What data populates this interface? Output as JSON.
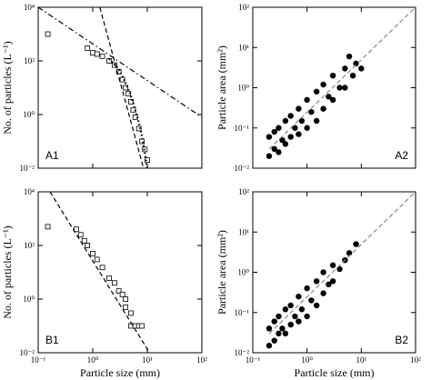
{
  "chart_data": [
    {
      "type": "scatter",
      "xscale": "log",
      "yscale": "log",
      "ylabel": "No. of particles (L⁻¹)",
      "annotation": "A1",
      "annotation_corner": "lower-left",
      "xlim": [
        0.1,
        100
      ],
      "ylim": [
        0.01,
        10000
      ],
      "xtick_labels": false,
      "xticks": [
        0.1,
        1,
        10,
        100
      ],
      "yticks": [
        {
          "value": 0.01,
          "label": "10⁻²"
        },
        {
          "value": 1,
          "label": "10⁰"
        },
        {
          "value": 100,
          "label": "10²"
        },
        {
          "value": 10000,
          "label": "10⁴"
        }
      ],
      "series": [
        {
          "kind": "scatter",
          "marker": "square",
          "color": "#000000",
          "x": [
            0.15,
            0.8,
            1,
            1.2,
            1.5,
            2,
            2.5,
            3,
            3.5,
            4,
            4.5,
            5,
            5.5,
            6,
            7,
            8,
            9,
            10
          ],
          "values": [
            1000,
            300,
            200,
            180,
            150,
            100,
            70,
            40,
            20,
            10,
            6,
            3,
            1.5,
            0.8,
            0.3,
            0.1,
            0.05,
            0.02
          ]
        },
        {
          "kind": "line",
          "dash": "dashdot",
          "color": "#000000",
          "x": [
            0.1,
            100
          ],
          "values": [
            10000,
            0.8
          ]
        },
        {
          "kind": "line",
          "dash": "dashed",
          "color": "#000000",
          "x": [
            1.35,
            8.5
          ],
          "values": [
            10000,
            0.01
          ]
        },
        {
          "kind": "line",
          "dash": "dotted",
          "color": "#000000",
          "x": [
            2,
            3,
            4,
            5,
            6,
            7,
            8,
            10
          ],
          "values": [
            120,
            50,
            15,
            5,
            1.5,
            0.5,
            0.15,
            0.01
          ]
        }
      ]
    },
    {
      "type": "scatter",
      "xscale": "log",
      "yscale": "log",
      "ylabel": "Particle area (mm²)",
      "annotation": "A2",
      "annotation_corner": "lower-right",
      "xlim": [
        0.1,
        100
      ],
      "ylim": [
        0.01,
        100
      ],
      "xtick_labels": false,
      "xticks": [
        0.1,
        1,
        10,
        100
      ],
      "yticks": [
        {
          "value": 0.01,
          "label": "10⁻²"
        },
        {
          "value": 0.1,
          "label": "10⁻¹"
        },
        {
          "value": 1,
          "label": "10⁰"
        },
        {
          "value": 10,
          "label": "10¹"
        },
        {
          "value": 100,
          "label": "10²"
        }
      ],
      "series": [
        {
          "kind": "scatter",
          "marker": "dot",
          "color": "#000000",
          "x": [
            0.2,
            0.2,
            0.25,
            0.25,
            0.3,
            0.3,
            0.35,
            0.4,
            0.4,
            0.5,
            0.5,
            0.6,
            0.7,
            0.7,
            0.8,
            1,
            1,
            1.2,
            1.5,
            1.5,
            2,
            2,
            2.5,
            3,
            3,
            4,
            5,
            5,
            6,
            7,
            8,
            10
          ],
          "values": [
            0.02,
            0.06,
            0.03,
            0.08,
            0.025,
            0.1,
            0.05,
            0.04,
            0.15,
            0.06,
            0.2,
            0.1,
            0.07,
            0.3,
            0.15,
            0.1,
            0.5,
            0.25,
            0.15,
            0.8,
            0.3,
            1.2,
            0.6,
            0.5,
            2,
            1,
            1,
            3,
            6,
            2,
            4,
            3
          ]
        },
        {
          "kind": "line",
          "dash": "dashed",
          "color": "#888888",
          "x": [
            0.2,
            100
          ],
          "values": [
            0.03,
            100
          ]
        }
      ]
    },
    {
      "type": "scatter",
      "xscale": "log",
      "yscale": "log",
      "ylabel": "No. of particles (L⁻¹)",
      "xlabel": "Particle size (mm)",
      "annotation": "B1",
      "annotation_corner": "lower-left",
      "xlim": [
        0.1,
        100
      ],
      "ylim": [
        0.01,
        10000
      ],
      "xticks": [
        {
          "value": 0.1,
          "label": "10⁻¹"
        },
        {
          "value": 1,
          "label": "10⁰"
        },
        {
          "value": 10,
          "label": "10¹"
        },
        {
          "value": 100,
          "label": "10²"
        }
      ],
      "yticks": [
        {
          "value": 0.01,
          "label": "10⁻²"
        },
        {
          "value": 1,
          "label": "10⁰"
        },
        {
          "value": 100,
          "label": "10²"
        },
        {
          "value": 10000,
          "label": "10⁴"
        }
      ],
      "series": [
        {
          "kind": "scatter",
          "marker": "square",
          "color": "#000000",
          "x": [
            0.15,
            0.5,
            0.6,
            0.7,
            0.8,
            1,
            1.2,
            1.5,
            2,
            2.5,
            3,
            3.5,
            4,
            4,
            5,
            5,
            6,
            7,
            8
          ],
          "values": [
            500,
            400,
            250,
            150,
            100,
            50,
            30,
            15,
            6,
            4,
            2,
            1.5,
            1,
            0.5,
            0.3,
            0.1,
            0.1,
            0.1,
            0.1
          ]
        },
        {
          "kind": "line",
          "dash": "dashed",
          "color": "#000000",
          "x": [
            0.165,
            11
          ],
          "values": [
            10000,
            0.01
          ]
        }
      ]
    },
    {
      "type": "scatter",
      "xscale": "log",
      "yscale": "log",
      "ylabel": "Particle area (mm²)",
      "xlabel": "Particle size (mm)",
      "annotation": "B2",
      "annotation_corner": "lower-right",
      "xlim": [
        0.1,
        100
      ],
      "ylim": [
        0.01,
        100
      ],
      "xticks": [
        {
          "value": 0.1,
          "label": "10⁻¹"
        },
        {
          "value": 1,
          "label": "10⁰"
        },
        {
          "value": 10,
          "label": "10¹"
        },
        {
          "value": 100,
          "label": "10²"
        }
      ],
      "yticks": [
        {
          "value": 0.01,
          "label": "10⁻²"
        },
        {
          "value": 0.1,
          "label": "10⁻¹"
        },
        {
          "value": 1,
          "label": "10⁰"
        },
        {
          "value": 10,
          "label": "10¹"
        },
        {
          "value": 100,
          "label": "10²"
        }
      ],
      "series": [
        {
          "kind": "scatter",
          "marker": "dot",
          "color": "#000000",
          "x": [
            0.2,
            0.2,
            0.25,
            0.25,
            0.3,
            0.3,
            0.35,
            0.4,
            0.4,
            0.5,
            0.5,
            0.6,
            0.7,
            0.7,
            0.8,
            1,
            1,
            1.2,
            1.5,
            1.5,
            2,
            2,
            2.5,
            3,
            3,
            4,
            5,
            6,
            8
          ],
          "values": [
            0.015,
            0.04,
            0.02,
            0.06,
            0.03,
            0.08,
            0.04,
            0.03,
            0.12,
            0.05,
            0.15,
            0.08,
            0.06,
            0.25,
            0.12,
            0.08,
            0.4,
            0.2,
            0.15,
            0.6,
            0.3,
            1,
            0.5,
            0.6,
            1.5,
            1.2,
            2,
            3,
            5
          ]
        },
        {
          "kind": "line",
          "dash": "dashed",
          "color": "#888888",
          "x": [
            0.2,
            100
          ],
          "values": [
            0.03,
            100
          ]
        }
      ]
    }
  ]
}
